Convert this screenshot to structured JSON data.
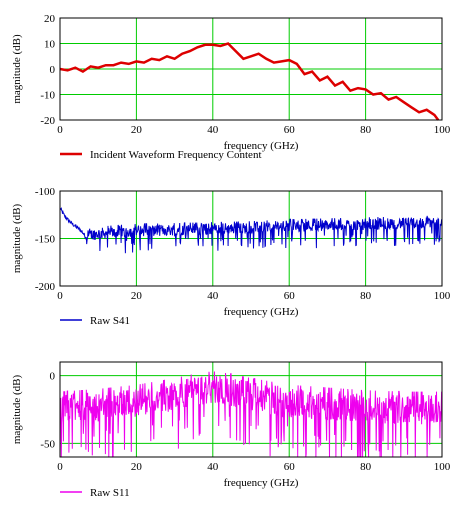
{
  "chart_data": [
    {
      "type": "line",
      "xlabel": "frequency (GHz)",
      "ylabel": "magnitude (dB)",
      "xlim": [
        0,
        100
      ],
      "ylim": [
        -20,
        20
      ],
      "xticks": [
        0,
        20,
        40,
        60,
        80,
        100
      ],
      "yticks": [
        20,
        10,
        0,
        -10,
        -20
      ],
      "grid": true,
      "legend_position": "bottom-left",
      "series": [
        {
          "name": "Incident Waveform Frequency Content",
          "color": "#dd0000",
          "x": [
            0,
            2,
            4,
            6,
            8,
            10,
            12,
            14,
            16,
            18,
            20,
            22,
            24,
            26,
            28,
            30,
            32,
            34,
            36,
            38,
            40,
            42,
            44,
            46,
            48,
            50,
            52,
            54,
            56,
            58,
            60,
            62,
            64,
            66,
            68,
            70,
            72,
            74,
            76,
            78,
            80,
            82,
            84,
            86,
            88,
            90,
            92,
            94,
            96,
            98,
            99
          ],
          "y": [
            0,
            -0.5,
            0.5,
            -1,
            1,
            0.5,
            1.5,
            1.5,
            2.5,
            2,
            3,
            2.5,
            4,
            3.5,
            5,
            4,
            6,
            7,
            8.5,
            9.5,
            9.5,
            9,
            10,
            7,
            4,
            5,
            6,
            4,
            2.5,
            3,
            3.5,
            2,
            -2,
            -1,
            -4.5,
            -3,
            -6.5,
            -5,
            -8.5,
            -7.5,
            -8,
            -10,
            -9.5,
            -12,
            -11,
            -13,
            -15,
            -17,
            -16,
            -18,
            -20
          ]
        }
      ]
    },
    {
      "type": "line",
      "xlabel": "frequency (GHz)",
      "ylabel": "magnitude (dB)",
      "xlim": [
        0,
        100
      ],
      "ylim": [
        -200,
        -100
      ],
      "xticks": [
        0,
        20,
        40,
        60,
        80,
        100
      ],
      "yticks": [
        -100,
        -150,
        -200
      ],
      "grid": true,
      "legend_position": "bottom-left",
      "series": [
        {
          "name": "Raw S41",
          "color": "#0000cc",
          "x": [
            0,
            1,
            2,
            3,
            4,
            5,
            6,
            7,
            8,
            10,
            15,
            20,
            30,
            40,
            50,
            60,
            70,
            80,
            90,
            100
          ],
          "y": [
            -118,
            -125,
            -130,
            -134,
            -137,
            -140,
            -144,
            -150,
            -146,
            -145,
            -143,
            -142,
            -141,
            -140,
            -139,
            -137,
            -136,
            -135,
            -134,
            -133
          ]
        }
      ]
    },
    {
      "type": "line",
      "xlabel": "frequency (GHz)",
      "ylabel": "magnitude (dB)",
      "xlim": [
        0,
        100
      ],
      "ylim": [
        -60,
        10
      ],
      "xticks": [
        0,
        20,
        40,
        60,
        80,
        100
      ],
      "yticks": [
        0,
        -50
      ],
      "grid": true,
      "legend_position": "bottom-left",
      "series": [
        {
          "name": "Raw S11",
          "color": "#ee00ee",
          "x": [
            0,
            10,
            20,
            30,
            35,
            40,
            45,
            50,
            60,
            70,
            80,
            90,
            100
          ],
          "y": [
            -25,
            -23,
            -20,
            -15,
            -12,
            -10,
            -12,
            -15,
            -20,
            -22,
            -24,
            -25,
            -25
          ]
        }
      ]
    }
  ]
}
